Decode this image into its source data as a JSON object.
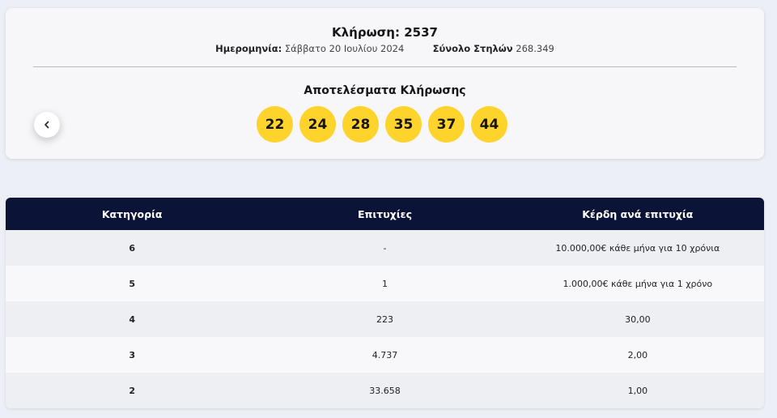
{
  "draw": {
    "title": "Κλήρωση: 2537",
    "date_label": "Ημερομηνία:",
    "date_value": "Σάββατο 20 Ιουλίου 2024",
    "columns_label": "Σύνολο Στηλών",
    "columns_value": "268.349"
  },
  "results": {
    "title": "Αποτελέσματα Κλήρωσης",
    "numbers": [
      "22",
      "24",
      "28",
      "35",
      "37",
      "44"
    ],
    "ball_color": "#fdd32c"
  },
  "nav": {
    "prev_icon": "‹"
  },
  "table": {
    "header_color": "#0b1337",
    "headers": [
      "Κατηγορία",
      "Επιτυχίες",
      "Κέρδη ανά επιτυχία"
    ],
    "rows": [
      [
        "6",
        "-",
        "10.000,00€ κάθε μήνα για 10 χρόνια"
      ],
      [
        "5",
        "1",
        "1.000,00€ κάθε μήνα για 1 χρόνο"
      ],
      [
        "4",
        "223",
        "30,00"
      ],
      [
        "3",
        "4.737",
        "2,00"
      ],
      [
        "2",
        "33.658",
        "1,00"
      ]
    ]
  }
}
